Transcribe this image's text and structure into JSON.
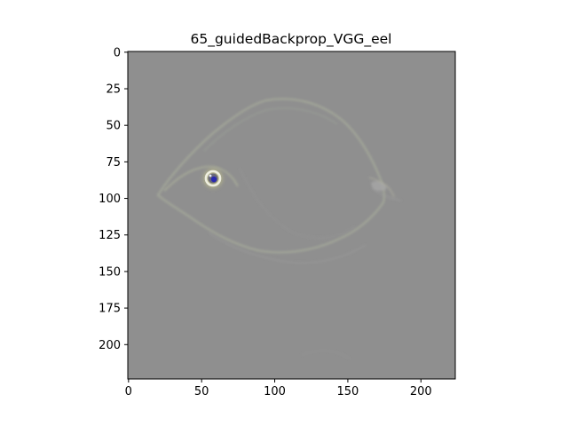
{
  "chart_data": {
    "type": "heatmap",
    "title": "65_guidedBackprop_VGG_eel",
    "xlabel": "",
    "ylabel": "",
    "image_size": [
      224,
      224
    ],
    "xlim": [
      -0.5,
      223.5
    ],
    "ylim": [
      223.5,
      -0.5
    ],
    "x_ticks": [
      0,
      50,
      100,
      150,
      200
    ],
    "x_tick_labels": [
      "0",
      "50",
      "100",
      "150",
      "200"
    ],
    "y_ticks": [
      0,
      25,
      50,
      75,
      100,
      125,
      150,
      175,
      200
    ],
    "y_tick_labels": [
      "0",
      "25",
      "50",
      "75",
      "100",
      "125",
      "150",
      "175",
      "200"
    ],
    "grid": false,
    "legend": "none",
    "background_value_color": "#8f8f8f",
    "features": [
      {
        "name": "body-outline",
        "description": "faint fish-shaped edge highlights",
        "center": [
          105,
          85
        ]
      },
      {
        "name": "eye",
        "center": [
          58,
          87
        ],
        "radius": 5,
        "colors": [
          "#f2f2f2",
          "#3a3aa0",
          "#e8e070"
        ]
      },
      {
        "name": "fin-edge",
        "center": [
          172,
          90
        ]
      }
    ]
  }
}
